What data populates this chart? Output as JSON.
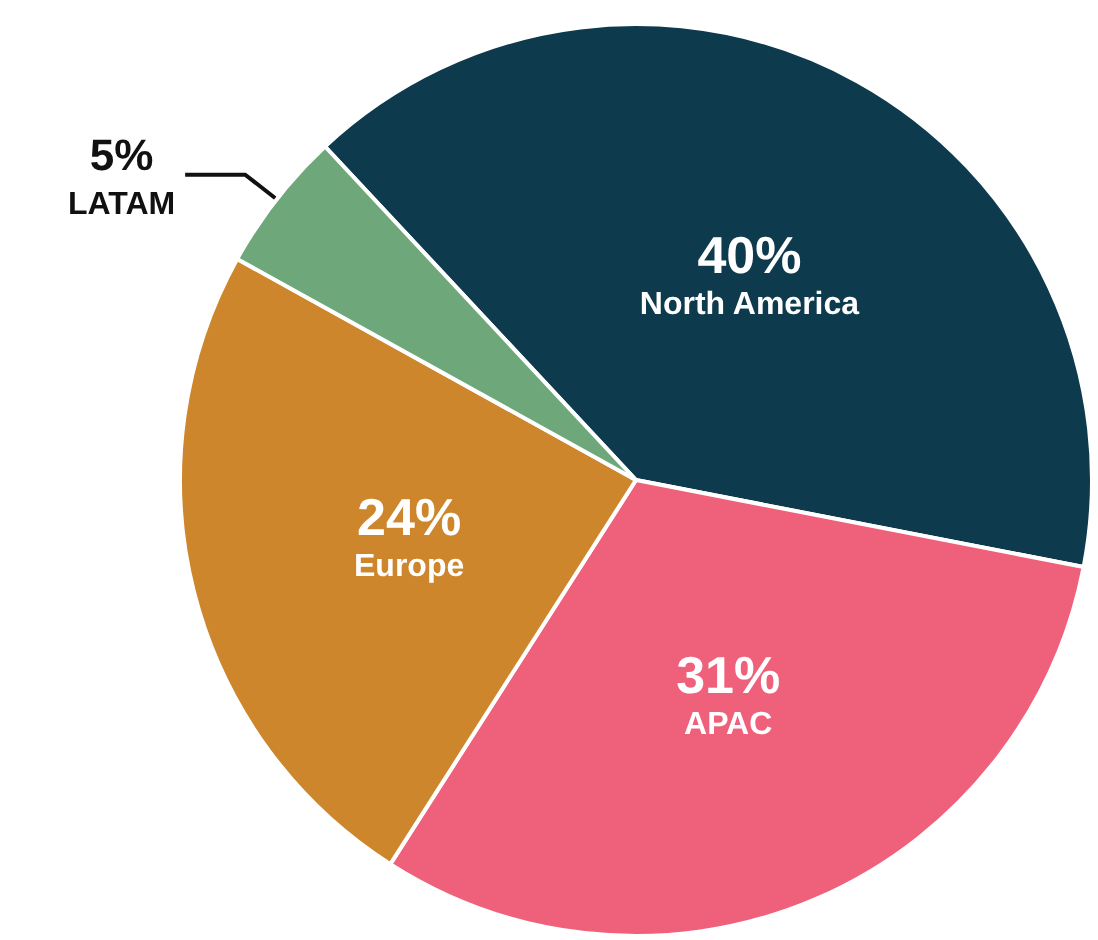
{
  "chart_data": {
    "type": "pie",
    "categories": [
      "North America",
      "APAC",
      "Europe",
      "LATAM"
    ],
    "values": [
      40,
      31,
      24,
      5
    ],
    "value_labels": [
      "40%",
      "31%",
      "24%",
      "5%"
    ],
    "colors": [
      "#0d3a4c",
      "#ef607a",
      "#cd862b",
      "#6ea77a"
    ],
    "legend": false
  }
}
